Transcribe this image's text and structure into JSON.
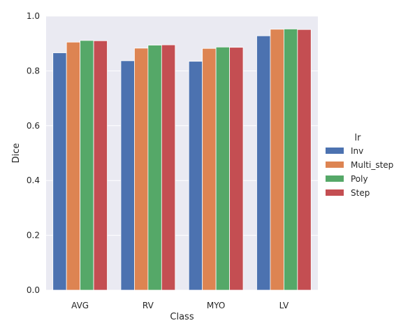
{
  "chart_data": {
    "type": "bar",
    "categories": [
      "AVG",
      "RV",
      "MYO",
      "LV"
    ],
    "series": [
      {
        "name": "Inv",
        "color": "#4c72b0",
        "values": [
          0.866,
          0.837,
          0.835,
          0.928
        ]
      },
      {
        "name": "Multi_step",
        "color": "#dd8452",
        "values": [
          0.905,
          0.883,
          0.882,
          0.952
        ]
      },
      {
        "name": "Poly",
        "color": "#55a868",
        "values": [
          0.911,
          0.894,
          0.887,
          0.953
        ]
      },
      {
        "name": "Step",
        "color": "#c44e52",
        "values": [
          0.91,
          0.895,
          0.886,
          0.951
        ]
      }
    ],
    "xlabel": "Class",
    "ylabel": "Dice",
    "ylim": [
      0.0,
      1.0
    ],
    "yticks": [
      "0.0",
      "0.2",
      "0.4",
      "0.6",
      "0.8",
      "1.0"
    ],
    "legend_title": "lr",
    "legend_position": "right",
    "grid": true,
    "background": "#eaeaf2",
    "grid_color": "#ffffff"
  }
}
